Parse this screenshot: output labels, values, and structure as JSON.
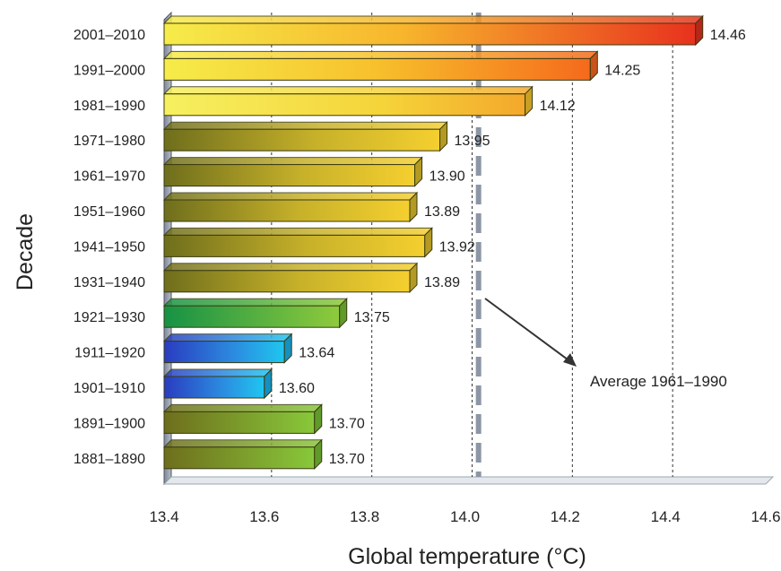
{
  "chart_data": {
    "type": "bar",
    "orientation": "horizontal",
    "title": "",
    "xlabel": "Global temperature (°C)",
    "ylabel": "Decade",
    "xlim": [
      13.4,
      14.6
    ],
    "xticks": [
      "13.4",
      "13.6",
      "13.8",
      "14.0",
      "14.2",
      "14.4",
      "14.6"
    ],
    "categories": [
      "2001–2010",
      "1991–2000",
      "1981–1990",
      "1971–1980",
      "1961–1970",
      "1951–1960",
      "1941–1950",
      "1931–1940",
      "1921–1930",
      "1911–1920",
      "1901–1910",
      "1891–1900",
      "1881–1890"
    ],
    "values": [
      14.46,
      14.25,
      14.12,
      13.95,
      13.9,
      13.89,
      13.92,
      13.89,
      13.75,
      13.64,
      13.6,
      13.7,
      13.7
    ],
    "value_labels": [
      "14.46",
      "14.25",
      "14.12",
      "13.95",
      "13.90",
      "13.89",
      "13.92",
      "13.89",
      "13.75",
      "13.64",
      "13.60",
      "13.70",
      "13.70"
    ],
    "reference_line": {
      "label": "Average 1961–1990",
      "value": 14.02
    },
    "grid": true,
    "colors": {
      "red": "#e8321e",
      "orange": "#f57e1f",
      "yellow": "#f6e23c",
      "olive": "#6e6e1c",
      "gold": "#f1cb2f",
      "green_dark": "#1f9a46",
      "green_light": "#8bc83c",
      "blue_dark": "#2a46c8",
      "blue_light": "#1fc1ef",
      "wall": "#8c96a6"
    }
  }
}
